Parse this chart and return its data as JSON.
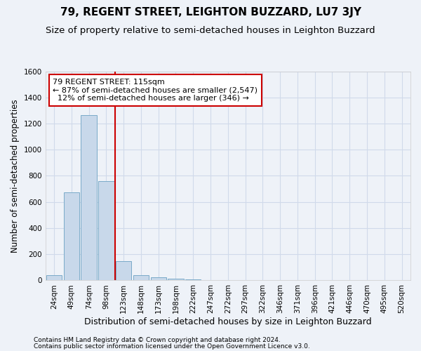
{
  "title": "79, REGENT STREET, LEIGHTON BUZZARD, LU7 3JY",
  "subtitle": "Size of property relative to semi-detached houses in Leighton Buzzard",
  "xlabel": "Distribution of semi-detached houses by size in Leighton Buzzard",
  "ylabel": "Number of semi-detached properties",
  "footnote1": "Contains HM Land Registry data © Crown copyright and database right 2024.",
  "footnote2": "Contains public sector information licensed under the Open Government Licence v3.0.",
  "bins": [
    "24sqm",
    "49sqm",
    "74sqm",
    "98sqm",
    "123sqm",
    "148sqm",
    "173sqm",
    "198sqm",
    "222sqm",
    "247sqm",
    "272sqm",
    "297sqm",
    "322sqm",
    "346sqm",
    "371sqm",
    "396sqm",
    "421sqm",
    "446sqm",
    "470sqm",
    "495sqm",
    "520sqm"
  ],
  "values": [
    40,
    675,
    1265,
    760,
    145,
    38,
    23,
    15,
    10,
    0,
    0,
    0,
    0,
    0,
    0,
    0,
    0,
    0,
    0,
    0,
    0
  ],
  "bar_color": "#c8d8ea",
  "bar_edge_color": "#7aaac8",
  "grid_color": "#d0daea",
  "background_color": "#eef2f8",
  "property_label": "79 REGENT STREET: 115sqm",
  "pct_smaller": 87,
  "n_smaller": 2547,
  "pct_larger": 12,
  "n_larger": 346,
  "vline_color": "#cc0000",
  "annotation_box_color": "#cc0000",
  "ylim": [
    0,
    1600
  ],
  "yticks": [
    0,
    200,
    400,
    600,
    800,
    1000,
    1200,
    1400,
    1600
  ],
  "vline_x": 3.5,
  "title_fontsize": 11,
  "subtitle_fontsize": 9.5,
  "xlabel_fontsize": 9,
  "ylabel_fontsize": 8.5,
  "tick_fontsize": 7.5,
  "annot_fontsize": 8,
  "footnote_fontsize": 6.5
}
